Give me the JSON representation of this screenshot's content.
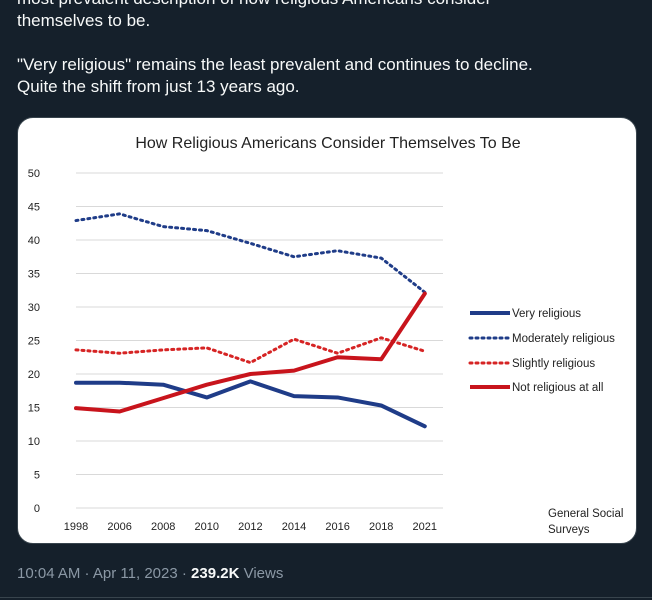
{
  "tweet": {
    "text_lines": [
      "most prevalent description of how religious Americans consider",
      "themselves to be.",
      "",
      "\"Very religious\" remains the least prevalent and continues to decline.",
      "Quite the shift from just 13 years ago."
    ],
    "time": "10:04 AM",
    "sep1": " · ",
    "date": "Apr 11, 2023",
    "sep2": " · ",
    "views_count": "239.2K",
    "views_label": " Views"
  },
  "chart_data": {
    "type": "line",
    "title": "How Religious Americans Consider Themselves To Be",
    "categories": [
      "1998",
      "2006",
      "2008",
      "2010",
      "2012",
      "2014",
      "2016",
      "2018",
      "2021"
    ],
    "ylim": [
      0,
      50
    ],
    "yticks": [
      "0",
      "5",
      "10",
      "15",
      "20",
      "25",
      "30",
      "35",
      "40",
      "45",
      "50"
    ],
    "grid": true,
    "legend_position": "right",
    "source_note": [
      "General Social",
      "Surveys"
    ],
    "series": [
      {
        "name": "Very religious",
        "style": "solid",
        "color": "#1f3c88",
        "values": [
          18.7,
          18.7,
          18.4,
          16.5,
          18.9,
          16.7,
          16.5,
          15.3,
          12.2
        ]
      },
      {
        "name": "Moderately religious",
        "style": "dotted",
        "color": "#1f3c88",
        "values": [
          42.9,
          43.9,
          42.0,
          41.4,
          39.5,
          37.5,
          38.4,
          37.3,
          32.2
        ]
      },
      {
        "name": "Slightly religious",
        "style": "dotted",
        "color": "#d62424",
        "values": [
          23.6,
          23.1,
          23.6,
          23.9,
          21.7,
          25.2,
          23.1,
          25.4,
          23.4
        ]
      },
      {
        "name": "Not religious at all",
        "style": "solid",
        "color": "#c8141c",
        "values": [
          14.9,
          14.4,
          16.4,
          18.4,
          20.0,
          20.5,
          22.5,
          22.2,
          32.0
        ]
      }
    ]
  }
}
